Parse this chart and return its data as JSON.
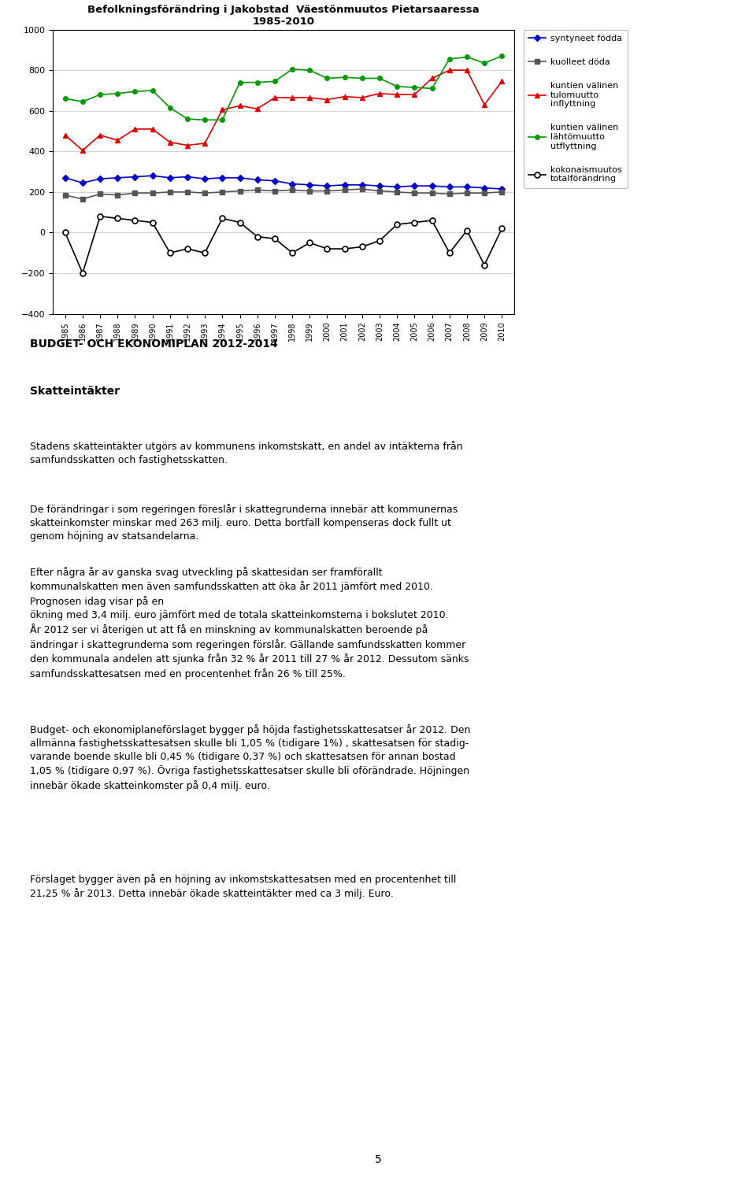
{
  "title_line1": "Befolkningsförändring i Jakobstad  Väestönmuutos Pietarsaaressa",
  "title_line2": "1985-2010",
  "years": [
    1985,
    1986,
    1987,
    1988,
    1989,
    1990,
    1991,
    1992,
    1993,
    1994,
    1995,
    1996,
    1997,
    1998,
    1999,
    2000,
    2001,
    2002,
    2003,
    2004,
    2005,
    2006,
    2007,
    2008,
    2009,
    2010
  ],
  "syntyneet": [
    270,
    245,
    265,
    270,
    275,
    280,
    270,
    275,
    265,
    270,
    270,
    260,
    255,
    240,
    235,
    230,
    235,
    235,
    230,
    225,
    230,
    230,
    225,
    225,
    220,
    215
  ],
  "kuolleet": [
    185,
    165,
    190,
    185,
    195,
    195,
    200,
    200,
    195,
    200,
    205,
    210,
    205,
    210,
    205,
    205,
    210,
    215,
    205,
    200,
    195,
    195,
    190,
    195,
    195,
    200
  ],
  "tulomuutto": [
    480,
    405,
    480,
    455,
    510,
    510,
    445,
    430,
    440,
    605,
    625,
    610,
    665,
    665,
    665,
    655,
    670,
    665,
    685,
    680,
    680,
    760,
    800,
    800,
    630,
    745
  ],
  "lahtomuutto": [
    660,
    645,
    680,
    685,
    695,
    700,
    615,
    560,
    555,
    555,
    740,
    740,
    745,
    805,
    800,
    760,
    765,
    760,
    760,
    720,
    715,
    710,
    855,
    865,
    835,
    870
  ],
  "kokonaismuutos": [
    0,
    -200,
    80,
    70,
    60,
    50,
    -100,
    -80,
    -100,
    70,
    50,
    -20,
    -30,
    -100,
    -50,
    -80,
    -80,
    -70,
    -40,
    40,
    50,
    60,
    -100,
    10,
    -160,
    20
  ],
  "legend_syntyneet": "syntyneet födda",
  "legend_kuolleet": "kuolleet döda",
  "legend_tulomuutto": "kuntien välinen\ntulomuutto\ninflyttning",
  "legend_lahtomuutto": "kuntien välinen\nlähtömuutto\nutflyttning",
  "legend_kokonais": "kokonaismuutos\ntotalförändring",
  "color_syntyneet": "#0000CC",
  "color_kuolleet": "#555555",
  "color_tulomuutto": "#DD0000",
  "color_lahtomuutto": "#009900",
  "color_kokonais": "#000000",
  "ylim_min": -400,
  "ylim_max": 1000,
  "yticks": [
    -400,
    -200,
    0,
    200,
    400,
    600,
    800,
    1000
  ],
  "budget_title": "BUDGET- OCH EKONOMIPLAN 2012-2014",
  "section_title": "Skatteintäkter",
  "para1": "Stadens skatteintäkter utgörs av kommunens inkomstskatt, en andel av intäkterna från\nsamfundsskatten och fastighetsskatten.",
  "para2": "De förändringar i som regeringen föreslår i skattegrunderna innebär att kommunernas\nskatteinkomster minskar med 263 milj. euro. Detta bortfall kompenseras dock fullt ut\ngenom höjning av statsandelarna.",
  "para3": "Efter några år av ganska svag utveckling på skattesidan ser framförallt\nkommunalskatten men även samfundsskatten att öka år 2011 jämfört med 2010.\nPrognosen idag visar på en\nökning med 3,4 milj. euro jämfört med de totala skatteinkomsterna i bokslutet 2010.\nÅr 2012 ser vi återigen ut att få en minskning av kommunalskatten beroende på\nändringar i skattegrunderna som regeringen förslår. Gällande samfundsskatten kommer\nden kommunala andelen att sjunka från 32 % år 2011 till 27 % år 2012. Dessutom sänks\nsamfundsskattesatsen med en procentenhet från 26 % till 25%.",
  "para4": "Budget- och ekonomiplaneförslaget bygger på höjda fastighetsskattesatser år 2012. Den\nallmänna fastighetsskattesatsen skulle bli 1,05 % (tidigare 1%) , skattesatsen för stadig-\nvarande boende skulle bli 0,45 % (tidigare 0,37 %) och skattesatsen för annan bostad\n1,05 % (tidigare 0,97 %). Övriga fastighetsskattesatser skulle bli oförändrade. Höjningen\ninnebär ökade skatteinkomster på 0,4 milj. euro.",
  "para5": "Förslaget bygger även på en höjning av inkomstskattesatsen med en procentenhet till\n21,25 % år 2013. Detta innebär ökade skatteintäkter med ca 3 milj. Euro.",
  "page_number": "5"
}
